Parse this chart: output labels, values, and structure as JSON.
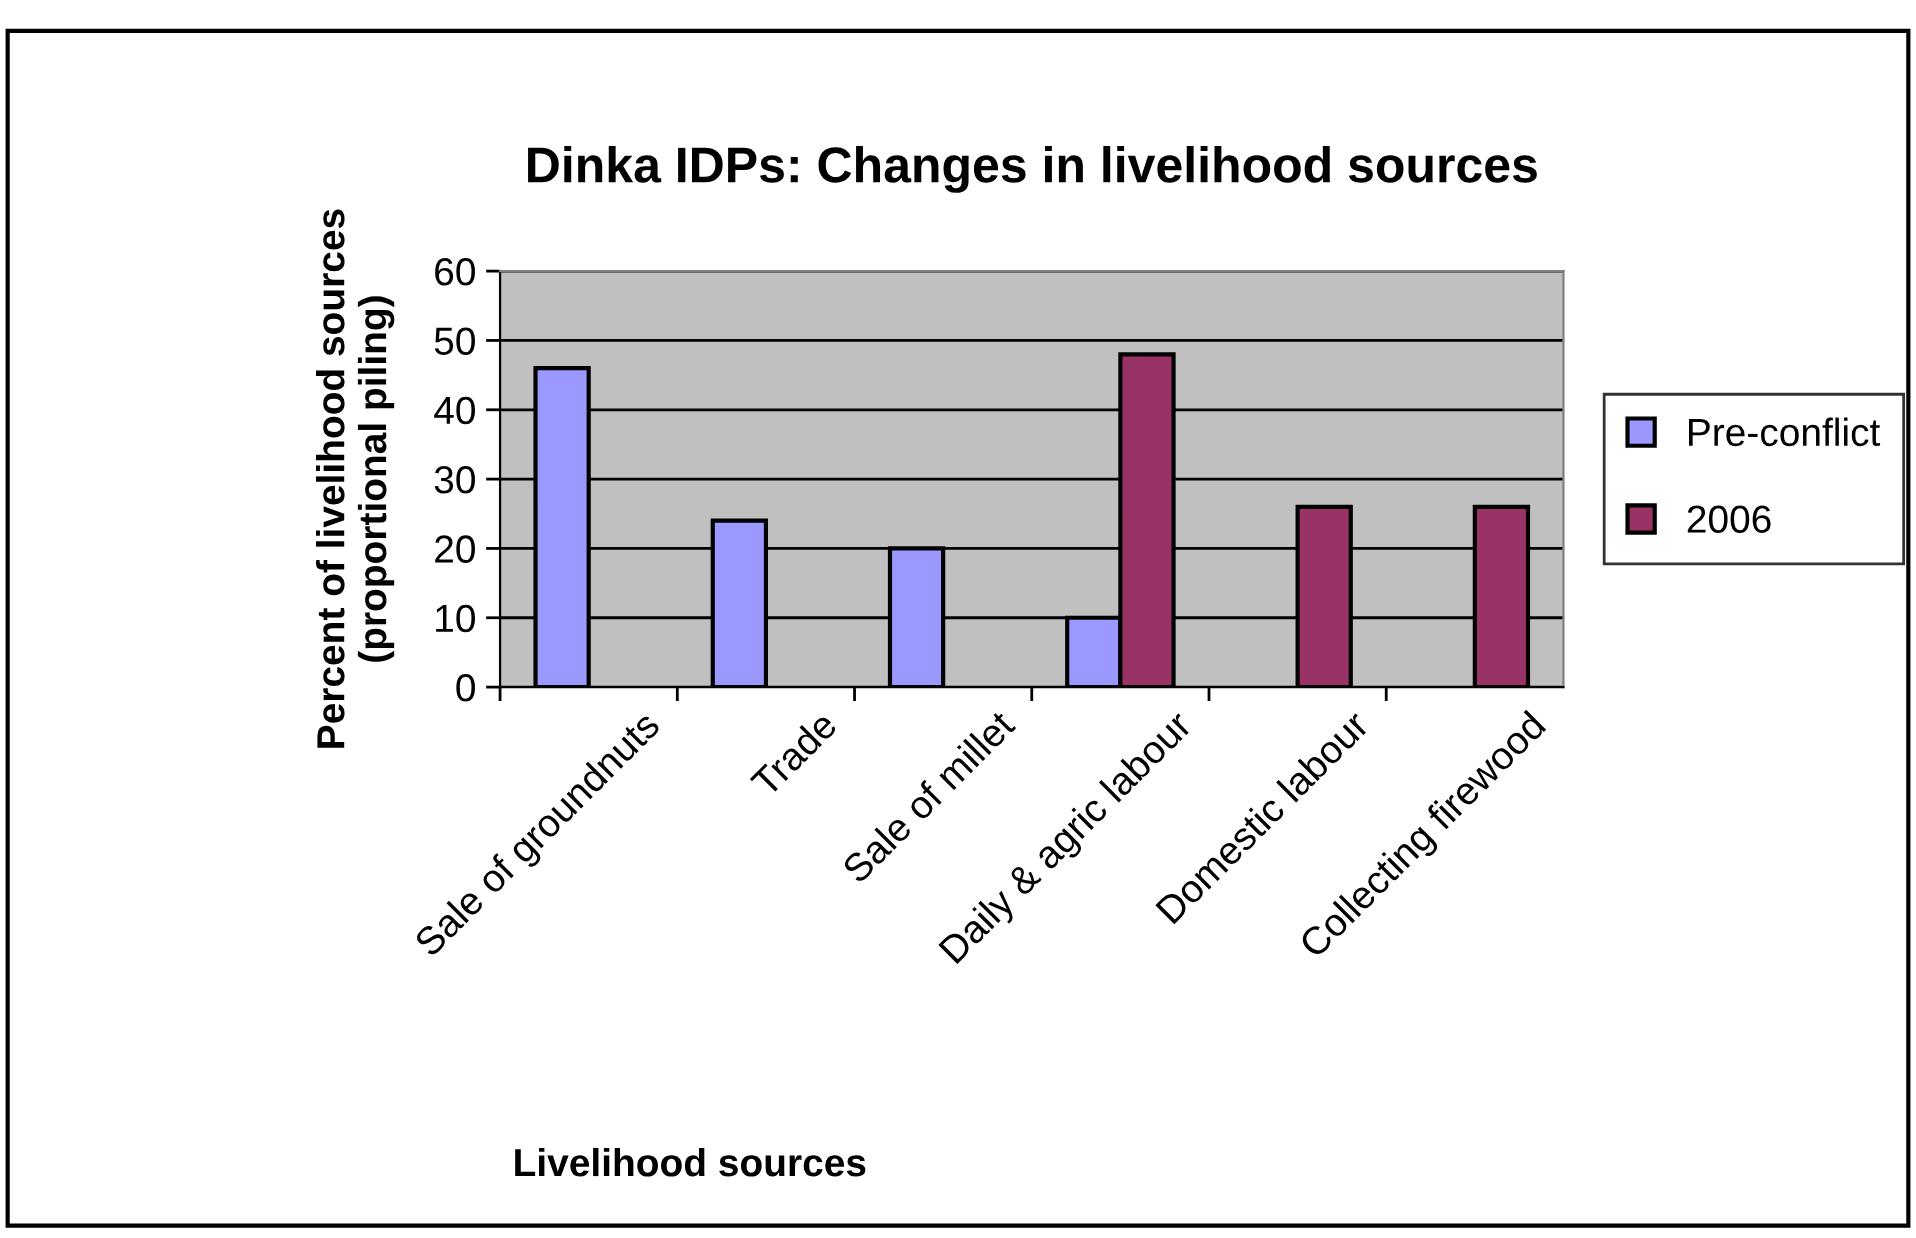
{
  "chart_data": {
    "type": "bar",
    "title": "Dinka IDPs: Changes in livelihood sources",
    "xlabel": "Livelihood sources",
    "ylabel": "Percent of livelihood sources\n(proportional piling)",
    "categories": [
      "Sale of groundnuts",
      "Trade",
      "Sale of millet",
      "Daily & agric labour",
      "Domestic labour",
      "Collecting firewood"
    ],
    "series": [
      {
        "name": "Pre-conflict",
        "color": "#9999ff",
        "values": [
          46,
          24,
          20,
          10,
          null,
          null
        ]
      },
      {
        "name": "2006",
        "color": "#993366",
        "values": [
          null,
          null,
          null,
          48,
          26,
          26
        ]
      }
    ],
    "ylim": [
      0,
      60
    ],
    "yticks": [
      0,
      10,
      20,
      30,
      40,
      50,
      60
    ],
    "grid": "y",
    "legend": "right"
  }
}
